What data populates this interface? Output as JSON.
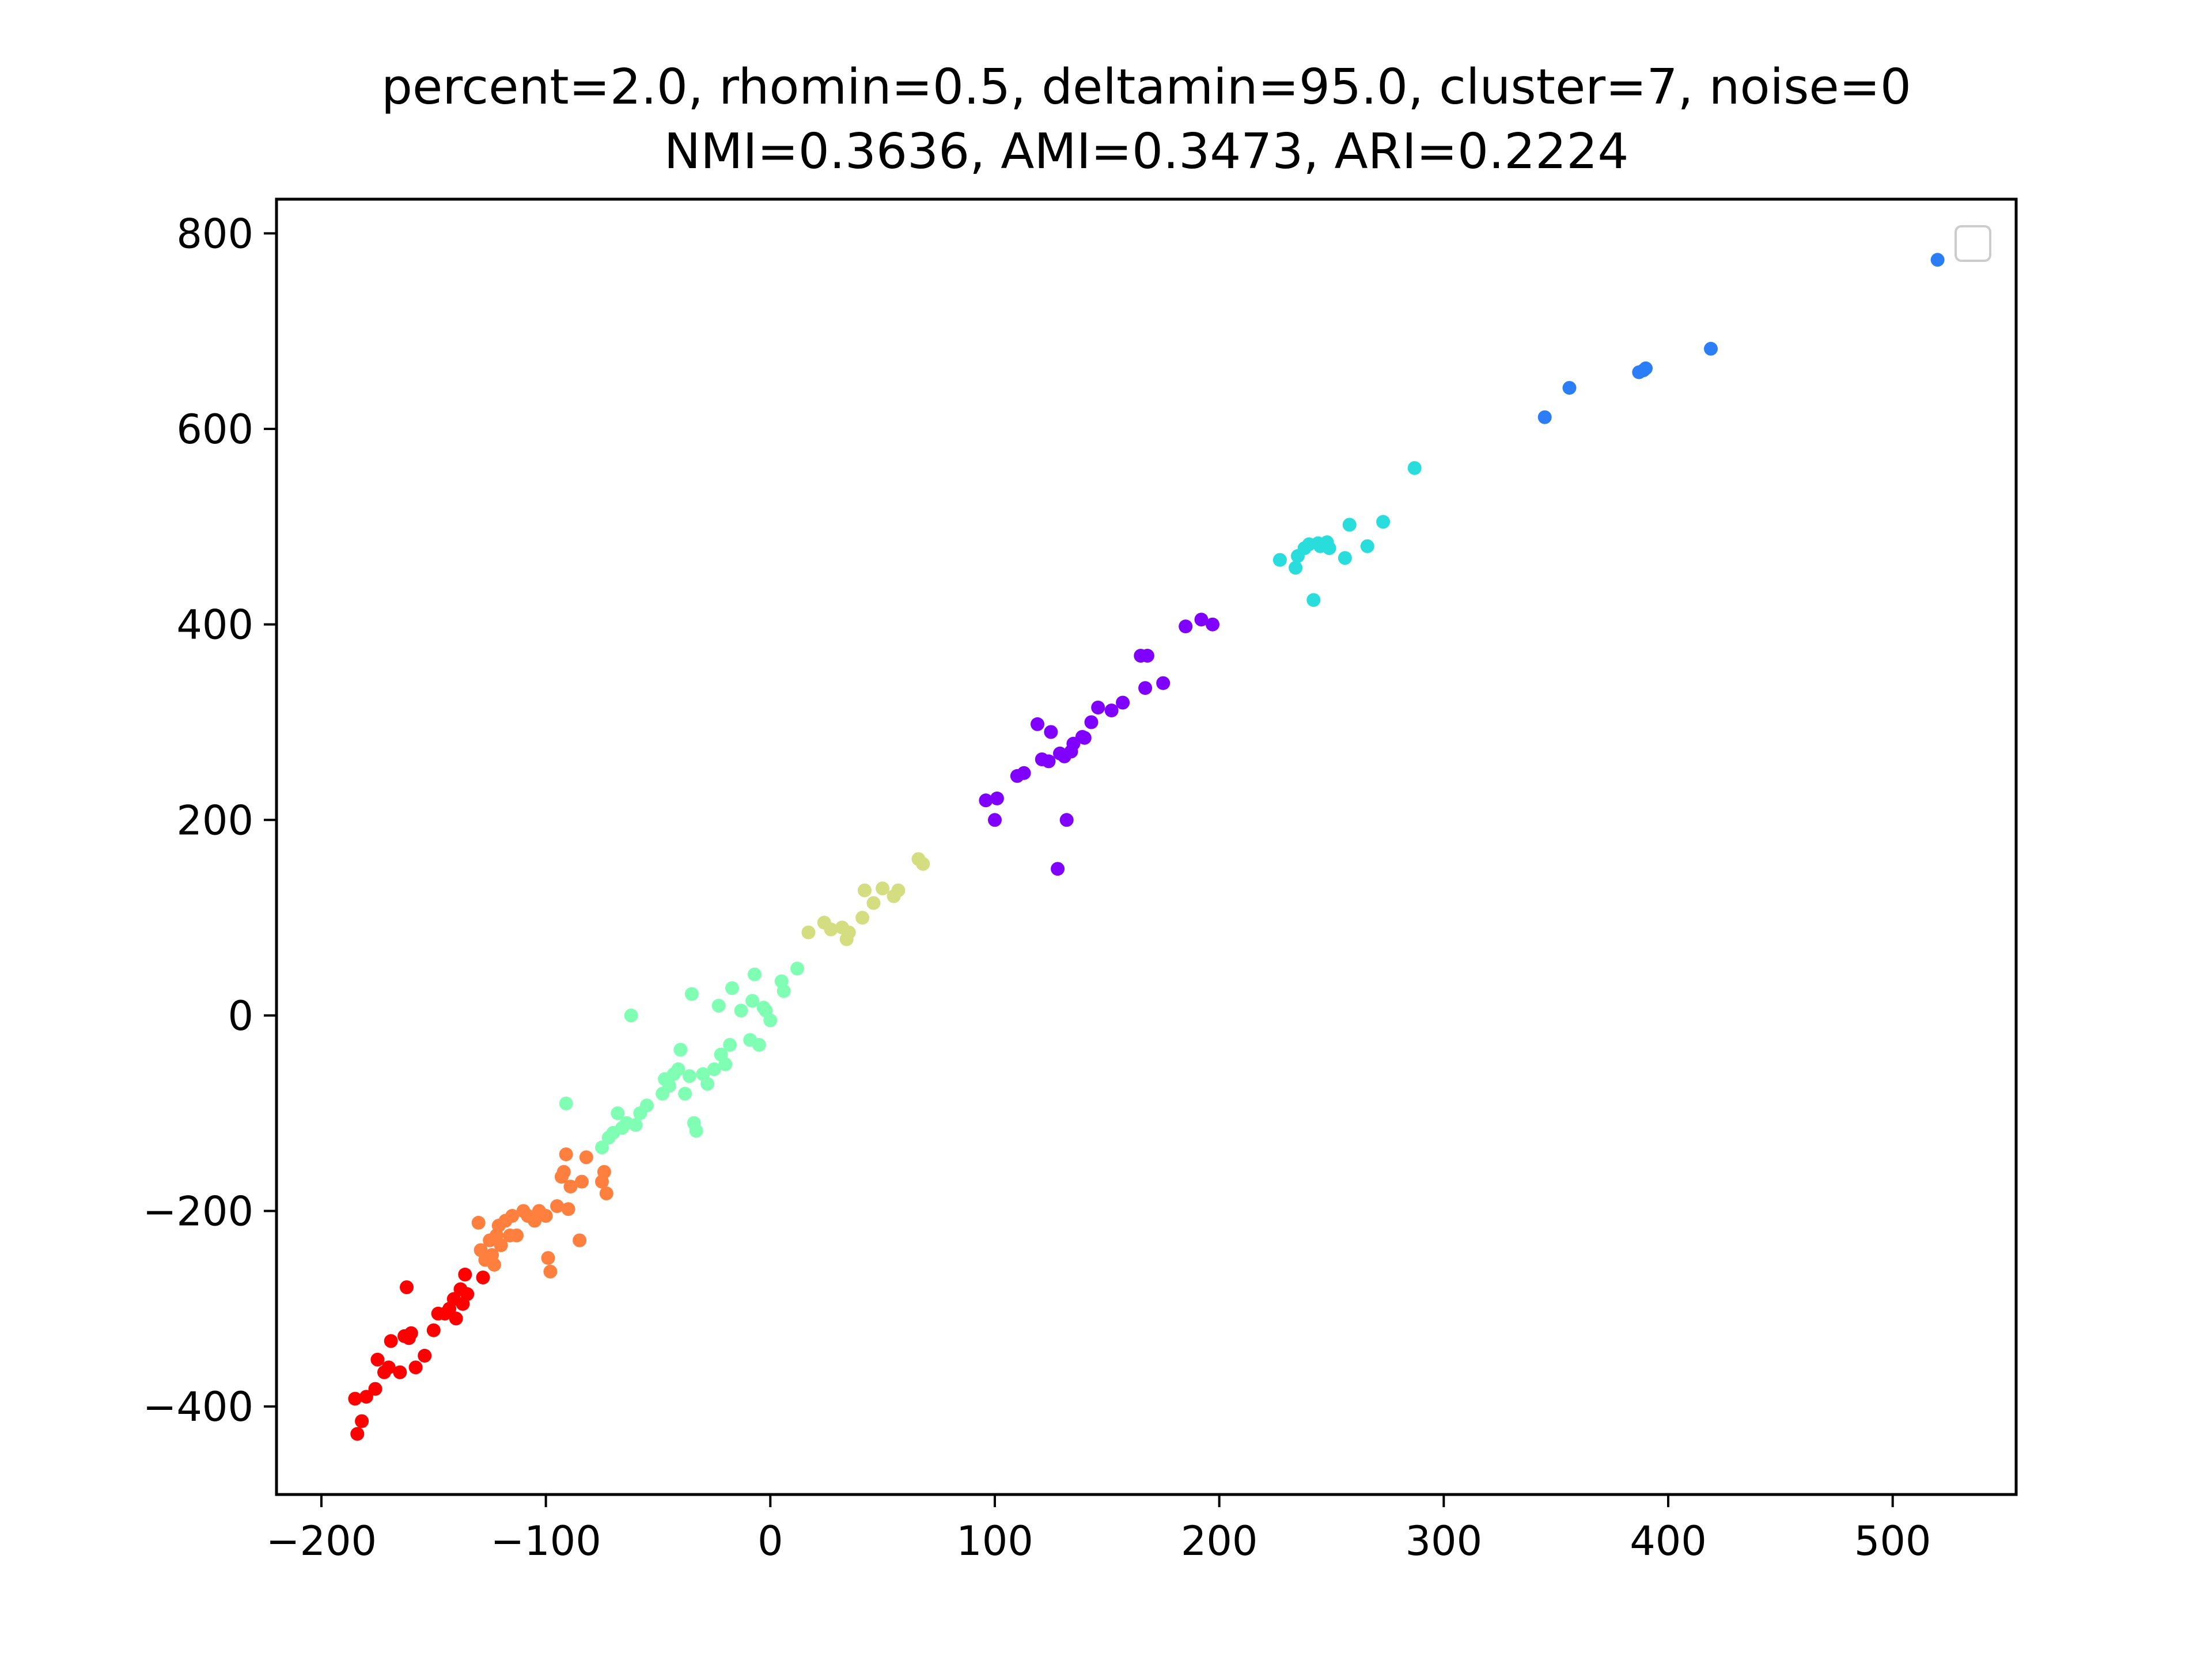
{
  "chart_data": {
    "type": "scatter",
    "title": "percent=2.0, rhomin=0.5, deltamin=95.0, cluster=7, noise=0",
    "subtitle": "NMI=0.3636, AMI=0.3473, ARI=0.2224",
    "xlabel": "",
    "ylabel": "",
    "xlim": [
      -220,
      555
    ],
    "ylim": [
      -490,
      835
    ],
    "x_ticks": [
      -200,
      -100,
      0,
      100,
      200,
      300,
      400,
      500
    ],
    "y_ticks": [
      -400,
      -200,
      0,
      200,
      400,
      600,
      800
    ],
    "x_tick_labels": [
      "−200",
      "−100",
      "0",
      "100",
      "200",
      "300",
      "400",
      "500"
    ],
    "y_tick_labels": [
      "−400",
      "−200",
      "0",
      "200",
      "400",
      "600",
      "800"
    ],
    "grid": false,
    "legend": {
      "placement": "top-right",
      "entries": []
    },
    "series": [
      {
        "color": "#ff0000",
        "points": [
          [
            -185,
            -392
          ],
          [
            -184,
            -428
          ],
          [
            -182,
            -415
          ],
          [
            -180,
            -390
          ],
          [
            -176,
            -382
          ],
          [
            -175,
            -352
          ],
          [
            -172,
            -365
          ],
          [
            -170,
            -360
          ],
          [
            -169,
            -333
          ],
          [
            -165,
            -365
          ],
          [
            -163,
            -328
          ],
          [
            -162,
            -278
          ],
          [
            -161,
            -330
          ],
          [
            -160,
            -325
          ],
          [
            -158,
            -360
          ],
          [
            -154,
            -348
          ],
          [
            -150,
            -322
          ],
          [
            -148,
            -305
          ],
          [
            -145,
            -305
          ],
          [
            -143,
            -300
          ],
          [
            -141,
            -290
          ],
          [
            -140,
            -310
          ],
          [
            -138,
            -280
          ],
          [
            -137,
            -295
          ],
          [
            -136,
            -265
          ],
          [
            -135,
            -285
          ],
          [
            -128,
            -268
          ]
        ]
      },
      {
        "color": "#ff7f3f",
        "points": [
          [
            -130,
            -212
          ],
          [
            -129,
            -240
          ],
          [
            -127,
            -250
          ],
          [
            -125,
            -230
          ],
          [
            -124,
            -245
          ],
          [
            -123,
            -255
          ],
          [
            -122,
            -225
          ],
          [
            -121,
            -215
          ],
          [
            -120,
            -235
          ],
          [
            -118,
            -210
          ],
          [
            -116,
            -225
          ],
          [
            -115,
            -205
          ],
          [
            -113,
            -225
          ],
          [
            -110,
            -200
          ],
          [
            -108,
            -205
          ],
          [
            -105,
            -210
          ],
          [
            -103,
            -200
          ],
          [
            -100,
            -205
          ],
          [
            -99,
            -248
          ],
          [
            -98,
            -262
          ],
          [
            -95,
            -195
          ],
          [
            -93,
            -165
          ],
          [
            -92,
            -160
          ],
          [
            -91,
            -142
          ],
          [
            -90,
            -198
          ],
          [
            -89,
            -175
          ],
          [
            -85,
            -230
          ],
          [
            -84,
            -170
          ],
          [
            -82,
            -145
          ],
          [
            -75,
            -170
          ],
          [
            -74,
            -160
          ],
          [
            -73,
            -182
          ]
        ]
      },
      {
        "color": "#80ffb4",
        "points": [
          [
            -91,
            -90
          ],
          [
            -75,
            -135
          ],
          [
            -72,
            -125
          ],
          [
            -70,
            -120
          ],
          [
            -68,
            -100
          ],
          [
            -66,
            -115
          ],
          [
            -64,
            -110
          ],
          [
            -62,
            0
          ],
          [
            -60,
            -112
          ],
          [
            -58,
            -100
          ],
          [
            -55,
            -92
          ],
          [
            -48,
            -80
          ],
          [
            -47,
            -65
          ],
          [
            -45,
            -72
          ],
          [
            -43,
            -60
          ],
          [
            -41,
            -55
          ],
          [
            -40,
            -35
          ],
          [
            -38,
            -80
          ],
          [
            -36,
            -62
          ],
          [
            -35,
            22
          ],
          [
            -34,
            -110
          ],
          [
            -33,
            -118
          ],
          [
            -30,
            -60
          ],
          [
            -28,
            -70
          ],
          [
            -25,
            -55
          ],
          [
            -23,
            10
          ],
          [
            -22,
            -40
          ],
          [
            -20,
            -50
          ],
          [
            -18,
            -30
          ],
          [
            -17,
            28
          ],
          [
            -13,
            5
          ],
          [
            -9,
            -25
          ],
          [
            -8,
            15
          ],
          [
            -7,
            42
          ],
          [
            -5,
            -30
          ],
          [
            -3,
            8
          ],
          [
            -2,
            5
          ],
          [
            0,
            -5
          ],
          [
            5,
            35
          ],
          [
            6,
            25
          ],
          [
            12,
            48
          ]
        ]
      },
      {
        "color": "#d4dd80",
        "points": [
          [
            17,
            85
          ],
          [
            24,
            95
          ],
          [
            27,
            88
          ],
          [
            32,
            90
          ],
          [
            34,
            78
          ],
          [
            35,
            85
          ],
          [
            41,
            100
          ],
          [
            42,
            128
          ],
          [
            46,
            115
          ],
          [
            50,
            130
          ],
          [
            55,
            122
          ],
          [
            57,
            128
          ],
          [
            66,
            160
          ],
          [
            68,
            155
          ]
        ]
      },
      {
        "color": "#8000ff",
        "points": [
          [
            96,
            220
          ],
          [
            100,
            200
          ],
          [
            101,
            222
          ],
          [
            110,
            245
          ],
          [
            113,
            248
          ],
          [
            119,
            298
          ],
          [
            121,
            262
          ],
          [
            124,
            260
          ],
          [
            125,
            290
          ],
          [
            128,
            150
          ],
          [
            129,
            268
          ],
          [
            131,
            265
          ],
          [
            132,
            200
          ],
          [
            134,
            270
          ],
          [
            135,
            278
          ],
          [
            139,
            285
          ],
          [
            140,
            284
          ],
          [
            143,
            300
          ],
          [
            146,
            315
          ],
          [
            152,
            312
          ],
          [
            157,
            320
          ],
          [
            165,
            368
          ],
          [
            167,
            335
          ],
          [
            168,
            368
          ],
          [
            175,
            340
          ],
          [
            185,
            398
          ],
          [
            192,
            405
          ],
          [
            197,
            400
          ]
        ]
      },
      {
        "color": "#2adddd",
        "points": [
          [
            227,
            466
          ],
          [
            234,
            458
          ],
          [
            235,
            470
          ],
          [
            238,
            478
          ],
          [
            240,
            482
          ],
          [
            242,
            425
          ],
          [
            244,
            483
          ],
          [
            245,
            480
          ],
          [
            248,
            484
          ],
          [
            249,
            478
          ],
          [
            256,
            468
          ],
          [
            258,
            502
          ],
          [
            266,
            480
          ],
          [
            273,
            505
          ],
          [
            287,
            560
          ]
        ]
      },
      {
        "color": "#2c7ef7",
        "points": [
          [
            345,
            612
          ],
          [
            356,
            642
          ],
          [
            387,
            658
          ],
          [
            389,
            660
          ],
          [
            390,
            662
          ],
          [
            419,
            682
          ],
          [
            520,
            773
          ]
        ]
      }
    ]
  }
}
